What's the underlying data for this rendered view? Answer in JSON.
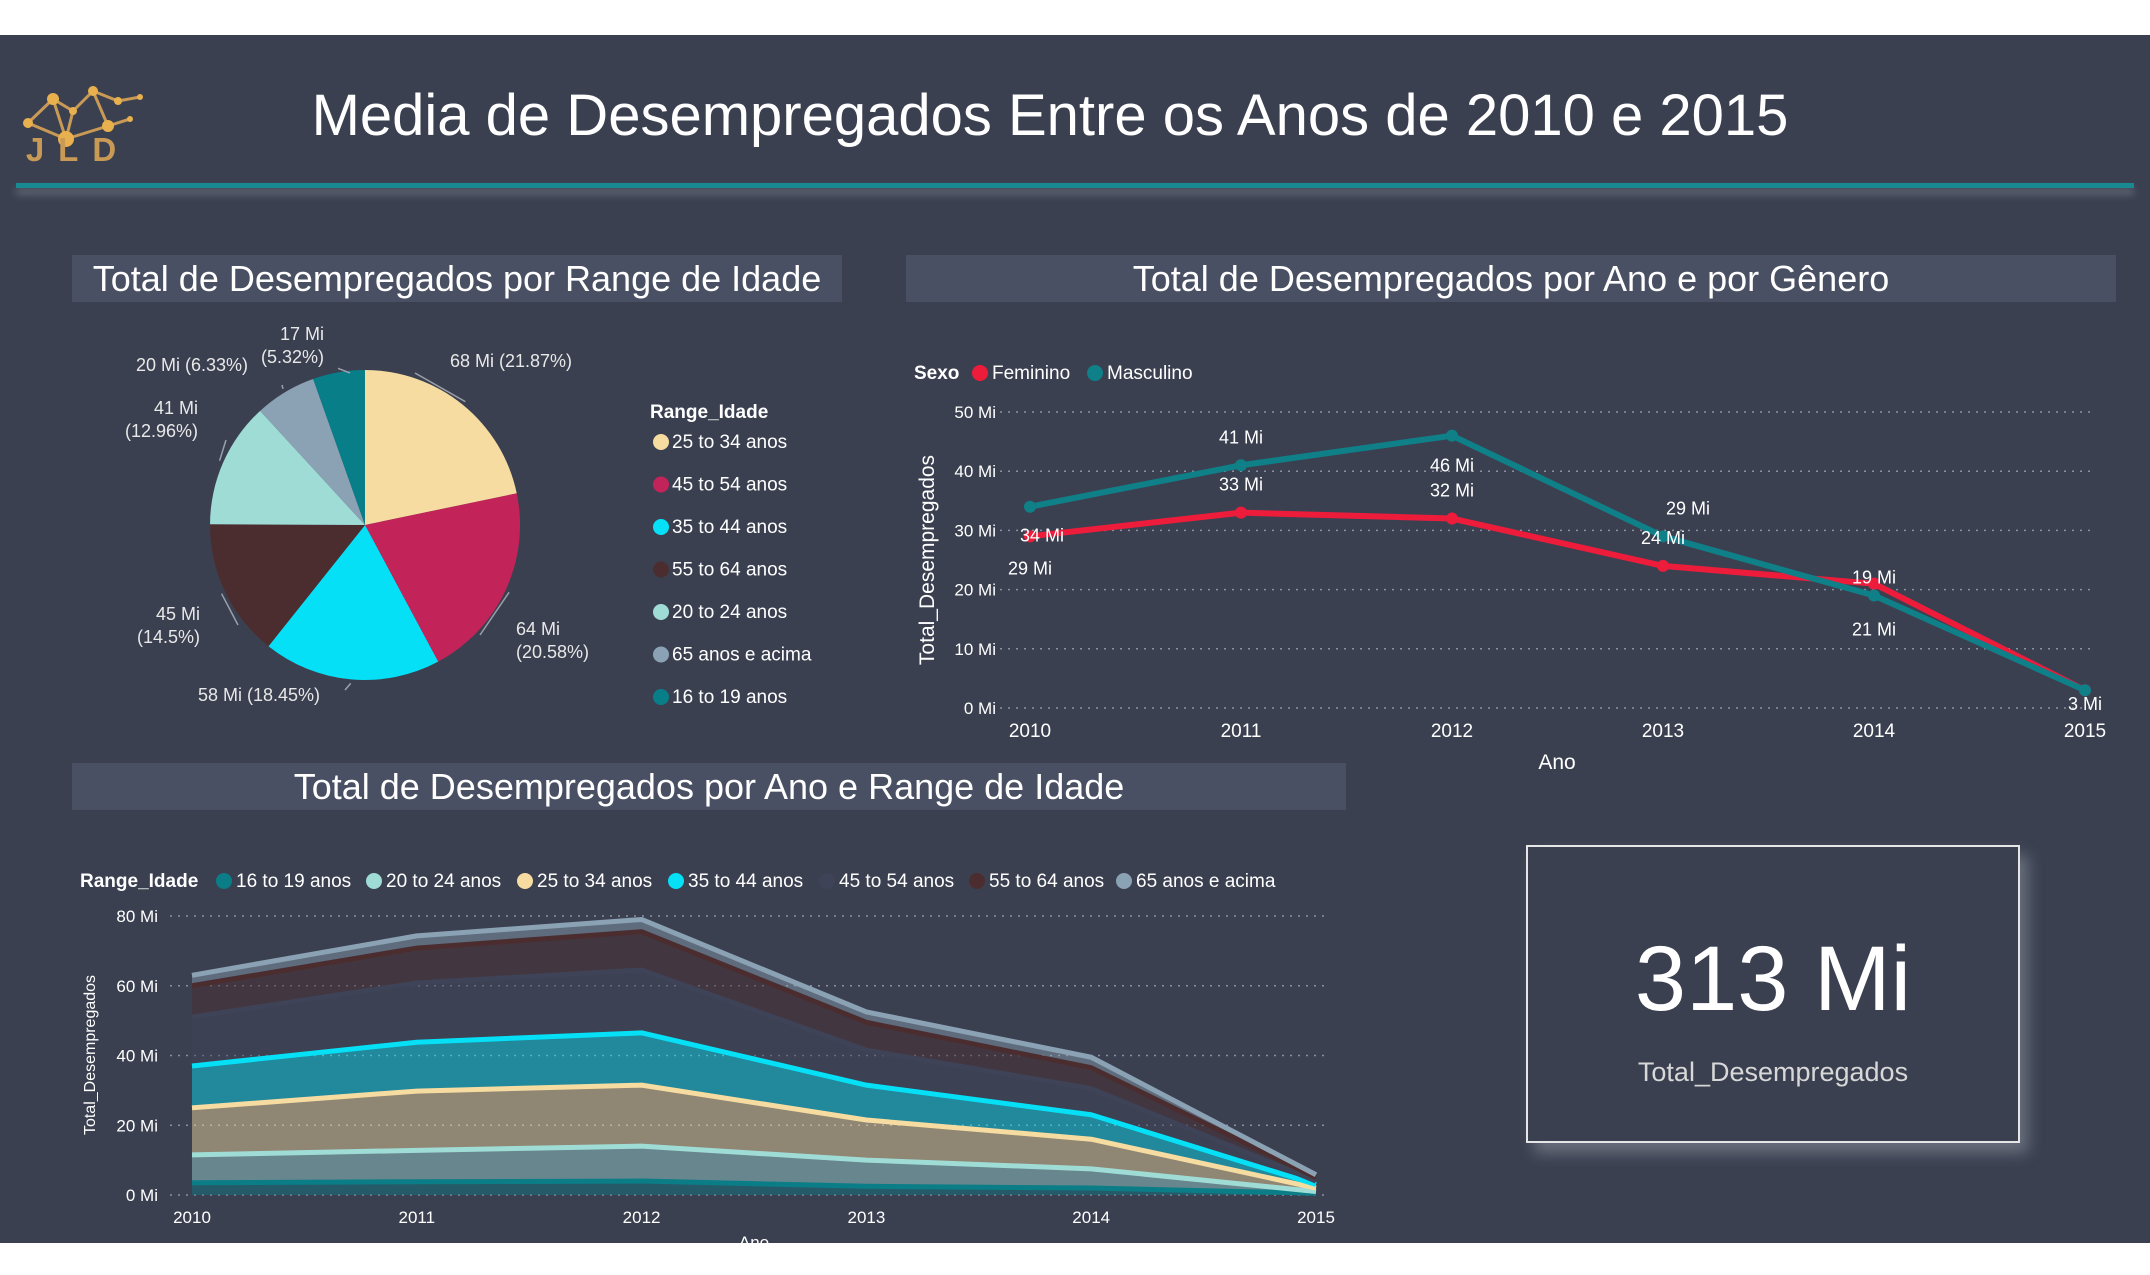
{
  "logo": {
    "text": "JLD"
  },
  "header": {
    "title": "Media de Desempregados Entre os Anos de 2010 e 2015"
  },
  "colors": {
    "background": "#3b4050",
    "panel_title_bg": "#4a5063",
    "accent": "#1a8a92",
    "feminino": "#ee1c3b",
    "masculino": "#0f7f88"
  },
  "panels": {
    "pie_title": "Total de Desempregados por Range de Idade",
    "line_title": "Total de Desempregados por Ano e por Gênero",
    "area_title": "Total de Desempregados por Ano e Range de Idade"
  },
  "card": {
    "value": "313 Mi",
    "label": "Total_Desempregados"
  },
  "chart_data": [
    {
      "type": "pie",
      "title": "Total de Desempregados por Range de Idade",
      "legend_title": "Range_Idade",
      "legend_position": "right",
      "slices": [
        {
          "name": "25 to 34 anos",
          "value": 68,
          "label": "68 Mi (21.87%)",
          "color": "#f6dca0"
        },
        {
          "name": "45 to 54 anos",
          "value": 64,
          "label_lines": [
            "64 Mi",
            "(20.58%)"
          ],
          "color": "#c2245a"
        },
        {
          "name": "35 to 44 anos",
          "value": 58,
          "label": "58 Mi (18.45%)",
          "color": "#05e0f6"
        },
        {
          "name": "55 to 64 anos",
          "value": 45,
          "label_lines": [
            "45 Mi",
            "(14.5%)"
          ],
          "color": "#4b2d2f"
        },
        {
          "name": "20 to 24 anos",
          "value": 41,
          "label_lines": [
            "41 Mi",
            "(12.96%)"
          ],
          "color": "#9fdcd6"
        },
        {
          "name": "65 anos e acima",
          "value": 20,
          "label": "20 Mi (6.33%)",
          "color": "#8aa2b4"
        },
        {
          "name": "16 to 19 anos",
          "value": 17,
          "label_lines": [
            "17 Mi",
            "(5.32%)"
          ],
          "color": "#087e89"
        }
      ]
    },
    {
      "type": "line",
      "title": "Total de Desempregados por Ano e por Gênero",
      "legend_title": "Sexo",
      "legend_position": "top-left",
      "xlabel": "Ano",
      "ylabel": "Total_Desempregados",
      "x": [
        "2010",
        "2011",
        "2012",
        "2013",
        "2014",
        "2015"
      ],
      "y_ticks": [
        "0 Mi",
        "10 Mi",
        "20 Mi",
        "30 Mi",
        "40 Mi",
        "50 Mi"
      ],
      "ylim": [
        0,
        50
      ],
      "grid": true,
      "series": [
        {
          "name": "Feminino",
          "color": "#ee1c3b",
          "values": [
            29,
            33,
            32,
            24,
            21,
            3
          ],
          "labels": [
            "29 Mi",
            "33 Mi",
            "32 Mi",
            "24 Mi",
            "21 Mi",
            ""
          ]
        },
        {
          "name": "Masculino",
          "color": "#0f7f88",
          "values": [
            34,
            41,
            46,
            29,
            19,
            3
          ],
          "labels": [
            "34 Mi",
            "41 Mi",
            "46 Mi",
            "29 Mi",
            "19 Mi",
            "3 Mi"
          ]
        }
      ]
    },
    {
      "type": "area",
      "stacked": true,
      "title": "Total de Desempregados por Ano e Range de Idade",
      "legend_title": "Range_Idade",
      "legend_position": "top-left",
      "xlabel": "Ano",
      "ylabel": "Total_Desempregados",
      "x": [
        "2010",
        "2011",
        "2012",
        "2013",
        "2014",
        "2015"
      ],
      "y_ticks": [
        "0 Mi",
        "20 Mi",
        "40 Mi",
        "60 Mi",
        "80 Mi"
      ],
      "ylim": [
        0,
        80
      ],
      "grid": true,
      "series": [
        {
          "name": "16 to 19 anos",
          "color": "#0b7d87",
          "values": [
            3.5,
            3.8,
            4,
            2.5,
            2,
            0.5
          ]
        },
        {
          "name": "20 to 24 anos",
          "color": "#9fdcd6",
          "values": [
            8,
            9,
            10,
            7.5,
            5.5,
            0.5
          ]
        },
        {
          "name": "25 to 34 anos",
          "color": "#f6dca0",
          "values": [
            13.5,
            17,
            17.5,
            11.5,
            8.5,
            1
          ]
        },
        {
          "name": "35 to 44 anos",
          "color": "#05e0f6",
          "values": [
            12,
            14,
            15,
            10,
            7,
            1
          ]
        },
        {
          "name": "45 to 54 anos",
          "color": "#3e4357",
          "values": [
            14,
            17,
            18,
            10,
            7.5,
            1
          ]
        },
        {
          "name": "55 to 64 anos",
          "color": "#4b2d2f",
          "values": [
            9,
            10,
            11,
            8,
            6,
            1
          ]
        },
        {
          "name": "65 anos e acima",
          "color": "#8aa2b4",
          "values": [
            3,
            3.5,
            3.5,
            3,
            3,
            0.8
          ]
        }
      ]
    }
  ]
}
